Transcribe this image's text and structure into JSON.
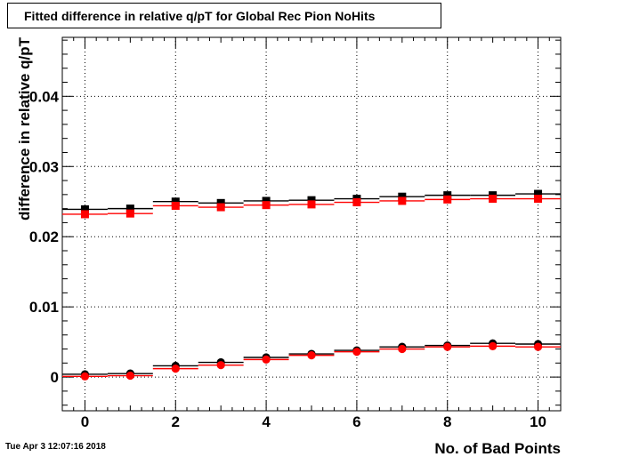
{
  "header": {
    "title": "Fitted difference in relative q/pT for Global Rec Pion NoHits"
  },
  "footer": {
    "timestamp": "Tue Apr  3 12:07:16 2018"
  },
  "chart_data": {
    "type": "scatter",
    "title": "Fitted difference in relative q/pT for Global Rec Pion NoHits",
    "xlabel": "No. of Bad Points",
    "ylabel": "difference in relative q/pT",
    "xlim": [
      -0.5,
      10.5
    ],
    "ylim": [
      -0.0048,
      0.0484
    ],
    "grid": true,
    "x_ticks": [
      0,
      2,
      4,
      6,
      8,
      10
    ],
    "x_tick_labels": [
      "0",
      "2",
      "4",
      "6",
      "8",
      "10"
    ],
    "y_ticks": [
      0,
      0.01,
      0.02,
      0.03,
      0.04
    ],
    "y_tick_labels": [
      "0",
      "0.01",
      "0.02",
      "0.03",
      "0.04"
    ],
    "x": [
      0,
      1,
      2,
      3,
      4,
      5,
      6,
      7,
      8,
      9,
      10
    ],
    "series": [
      {
        "marker": "square",
        "color": "#000000",
        "values": [
          0.0239,
          0.024,
          0.025,
          0.0248,
          0.0251,
          0.0252,
          0.0254,
          0.0257,
          0.0259,
          0.0259,
          0.0261
        ]
      },
      {
        "marker": "square",
        "color": "#ff0000",
        "values": [
          0.0232,
          0.0233,
          0.0244,
          0.0242,
          0.0245,
          0.0246,
          0.0249,
          0.0251,
          0.0253,
          0.0254,
          0.0254
        ]
      },
      {
        "marker": "circle",
        "color": "#000000",
        "values": [
          0.0004,
          0.0005,
          0.0016,
          0.0021,
          0.0028,
          0.0033,
          0.0038,
          0.0043,
          0.0045,
          0.0048,
          0.0047
        ]
      },
      {
        "marker": "circle",
        "color": "#ff0000",
        "values": [
          0.0001,
          0.0002,
          0.0012,
          0.0017,
          0.0025,
          0.0031,
          0.0036,
          0.004,
          0.0043,
          0.0044,
          0.0043
        ]
      }
    ]
  }
}
